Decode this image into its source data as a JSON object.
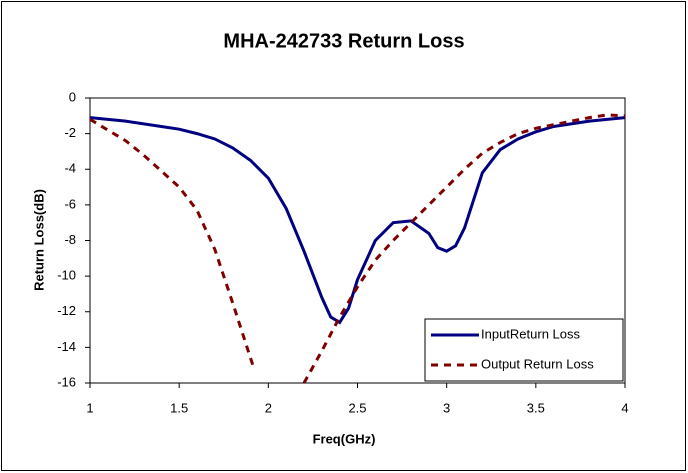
{
  "chart_data": {
    "type": "line",
    "title": "MHA-242733 Return Loss",
    "x_label": "Freq(GHz)",
    "y_label": "Return Loss(dB)",
    "xlim": [
      1,
      4
    ],
    "xticks": [
      1,
      1.5,
      2,
      2.5,
      3,
      3.5,
      4
    ],
    "ylim": [
      -16,
      0
    ],
    "yticks": [
      -16,
      -14,
      -12,
      -10,
      -8,
      -6,
      -4,
      -2,
      0
    ],
    "grid": false,
    "legend": "bottom-right",
    "series": [
      {
        "name": "InputReturn Loss",
        "color": "#000080",
        "dash": "solid",
        "x": [
          1,
          1.2,
          1.4,
          1.5,
          1.6,
          1.7,
          1.8,
          1.9,
          2.0,
          2.1,
          2.2,
          2.3,
          2.35,
          2.4,
          2.45,
          2.5,
          2.6,
          2.7,
          2.8,
          2.9,
          2.95,
          3.0,
          3.05,
          3.1,
          3.2,
          3.3,
          3.4,
          3.5,
          3.6,
          3.8,
          4.0
        ],
        "values": [
          -1.1,
          -1.3,
          -1.6,
          -1.75,
          -2.0,
          -2.3,
          -2.8,
          -3.5,
          -4.5,
          -6.2,
          -8.6,
          -11.2,
          -12.3,
          -12.6,
          -11.8,
          -10.2,
          -8.0,
          -7.0,
          -6.9,
          -7.6,
          -8.4,
          -8.6,
          -8.3,
          -7.3,
          -4.2,
          -2.9,
          -2.3,
          -1.9,
          -1.6,
          -1.3,
          -1.1
        ]
      },
      {
        "name": "Output Return Loss",
        "color": "#800000",
        "dash": "dashed",
        "x": [
          1,
          1.1,
          1.2,
          1.3,
          1.4,
          1.5,
          1.6,
          1.7,
          1.8,
          1.9,
          1.92,
          2.05,
          2.2,
          2.3,
          2.4,
          2.5,
          2.6,
          2.7,
          2.8,
          2.9,
          3.0,
          3.1,
          3.2,
          3.3,
          3.4,
          3.5,
          3.6,
          3.7,
          3.8,
          3.9,
          4.0
        ],
        "values": [
          -1.2,
          -1.8,
          -2.4,
          -3.2,
          -4.1,
          -5.0,
          -6.3,
          -8.5,
          -11.5,
          -14.6,
          -15.2,
          null,
          -16,
          -14.2,
          -12.3,
          -10.6,
          -9.1,
          -8.0,
          -7.0,
          -6.0,
          -5.0,
          -4.0,
          -3.1,
          -2.5,
          -2.0,
          -1.7,
          -1.5,
          -1.3,
          -1.1,
          -0.95,
          -1.0
        ]
      }
    ]
  }
}
